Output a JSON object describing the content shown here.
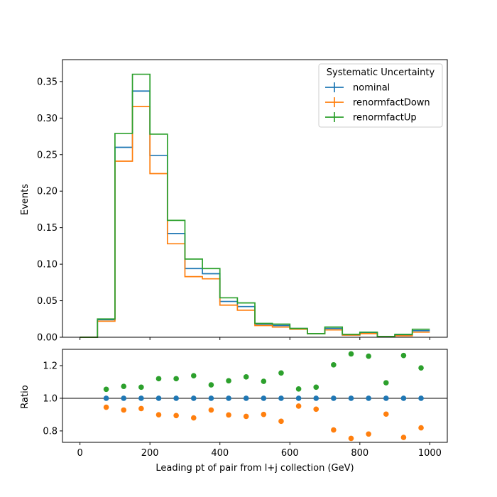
{
  "chart_data": {
    "type": "line",
    "top": {
      "ylabel": "Events",
      "ylim": [
        0,
        0.38
      ],
      "yticks": [
        0.0,
        0.05,
        0.1,
        0.15,
        0.2,
        0.25,
        0.3,
        0.35
      ],
      "ytick_labels": [
        "0.00",
        "0.05",
        "0.10",
        "0.15",
        "0.20",
        "0.25",
        "0.30",
        "0.35"
      ],
      "legend_title": "Systematic Uncertainty",
      "legend_position": "top-right",
      "bin_edges": [
        0,
        50,
        100,
        150,
        200,
        250,
        300,
        350,
        400,
        450,
        500,
        550,
        600,
        650,
        700,
        750,
        800,
        850,
        900,
        950,
        1000
      ],
      "series": [
        {
          "name": "nominal",
          "color": "#1f77b4",
          "values": [
            0.0,
            0.024,
            0.26,
            0.337,
            0.249,
            0.142,
            0.094,
            0.087,
            0.049,
            0.042,
            0.018,
            0.016,
            0.012,
            0.005,
            0.012,
            0.003,
            0.006,
            0.001,
            0.003,
            0.009
          ]
        },
        {
          "name": "renormfactDown",
          "color": "#ff7f0e",
          "values": [
            0.0,
            0.022,
            0.241,
            0.316,
            0.224,
            0.128,
            0.083,
            0.08,
            0.044,
            0.037,
            0.016,
            0.014,
            0.011,
            0.005,
            0.01,
            0.003,
            0.005,
            0.001,
            0.002,
            0.007
          ]
        },
        {
          "name": "renormfactUp",
          "color": "#2ca02c",
          "values": [
            0.0,
            0.025,
            0.279,
            0.36,
            0.278,
            0.16,
            0.107,
            0.094,
            0.054,
            0.047,
            0.019,
            0.018,
            0.012,
            0.005,
            0.014,
            0.004,
            0.007,
            0.001,
            0.004,
            0.011
          ]
        }
      ]
    },
    "bottom": {
      "ylabel": "Ratio",
      "ylim": [
        0.73,
        1.3
      ],
      "yticks": [
        0.8,
        1.0,
        1.2
      ],
      "ytick_labels": [
        "0.8",
        "1.0",
        "1.2"
      ],
      "reference_line": 1.0,
      "x": [
        75,
        125,
        175,
        225,
        275,
        325,
        375,
        425,
        475,
        525,
        575,
        625,
        675,
        725,
        775,
        825,
        875,
        925,
        975
      ],
      "series": [
        {
          "name": "nominal",
          "color": "#1f77b4",
          "values": [
            1.0,
            1.0,
            1.0,
            1.0,
            1.0,
            1.0,
            1.0,
            1.0,
            1.0,
            1.0,
            1.0,
            1.0,
            1.0,
            1.0,
            1.0,
            1.0,
            1.0,
            1.0,
            1.0
          ]
        },
        {
          "name": "renormfactDown",
          "color": "#ff7f0e",
          "values": [
            0.945,
            0.928,
            0.937,
            0.899,
            0.894,
            0.88,
            0.928,
            0.898,
            0.889,
            0.901,
            0.859,
            0.952,
            0.933,
            0.806,
            0.754,
            0.781,
            0.903,
            0.76,
            0.819
          ]
        },
        {
          "name": "renormfactUp",
          "color": "#2ca02c",
          "values": [
            1.055,
            1.073,
            1.068,
            1.12,
            1.12,
            1.138,
            1.082,
            1.107,
            1.131,
            1.104,
            1.155,
            1.057,
            1.068,
            1.205,
            1.272,
            1.258,
            1.095,
            1.262,
            1.186
          ]
        }
      ]
    },
    "xlabel": "Leading pt of pair from l+j collection (GeV)",
    "xlim": [
      -50,
      1050
    ],
    "xticks": [
      0,
      200,
      400,
      600,
      800,
      1000
    ],
    "xtick_labels": [
      "0",
      "200",
      "400",
      "600",
      "800",
      "1000"
    ]
  }
}
